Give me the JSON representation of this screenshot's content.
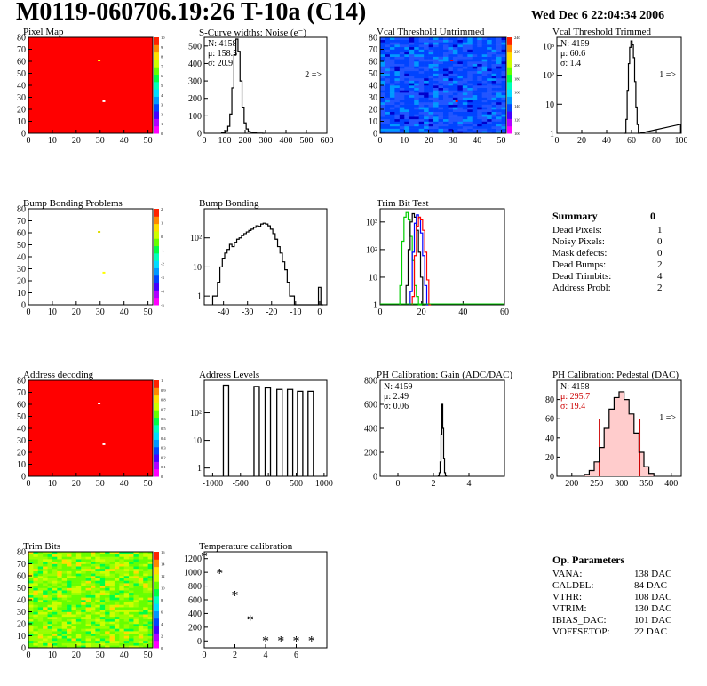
{
  "header": {
    "title": "M0119-060706.19:26 T-10a (C14)",
    "date": "Wed Dec  6 22:04:34 2006"
  },
  "panels": [
    {
      "id": "p1",
      "title": "Pixel Map"
    },
    {
      "id": "p2",
      "title": "S-Curve widths: Noise (e⁻)"
    },
    {
      "id": "p3",
      "title": "Vcal Threshold Untrimmed"
    },
    {
      "id": "p4",
      "title": "Vcal Threshold Trimmed"
    },
    {
      "id": "p5",
      "title": "Bump Bonding Problems"
    },
    {
      "id": "p6",
      "title": "Bump Bonding"
    },
    {
      "id": "p7",
      "title": "Trim Bit Test"
    },
    {
      "id": "p9",
      "title": "Address decoding"
    },
    {
      "id": "p10",
      "title": "Address Levels"
    },
    {
      "id": "p11",
      "title": "PH Calibration: Gain (ADC/DAC)"
    },
    {
      "id": "p12",
      "title": "PH Calibration: Pedestal (DAC)"
    },
    {
      "id": "p13",
      "title": "Trim Bits"
    },
    {
      "id": "p14",
      "title": "Temperature calibration"
    }
  ],
  "stats": {
    "p2": {
      "lines": [
        "N: 4158",
        "μ: 158.5",
        "σ: 20.9"
      ],
      "note": "2 =>"
    },
    "p4": {
      "lines": [
        "N: 4159",
        "μ: 60.6",
        "σ:  1.4"
      ],
      "note": "1 =>"
    },
    "p11": {
      "lines": [
        "N: 4159",
        "μ: 2.49",
        "σ: 0.06"
      ]
    },
    "p12": {
      "lines": [
        "N: 4158",
        "μ: 295.7",
        "σ: 19.4"
      ],
      "note": "1 =>"
    }
  },
  "summary": {
    "heading": "Summary",
    "heading_value": "0",
    "rows": [
      {
        "label": "Dead Pixels:",
        "value": "1"
      },
      {
        "label": "Noisy Pixels:",
        "value": "0"
      },
      {
        "label": "Mask defects:",
        "value": "0"
      },
      {
        "label": "Dead Bumps:",
        "value": "2"
      },
      {
        "label": "Dead Trimbits:",
        "value": "4"
      },
      {
        "label": "Address Probl:",
        "value": "2"
      }
    ]
  },
  "op_params": {
    "heading": "Op. Parameters",
    "rows": [
      {
        "label": "VANA:",
        "value": "138 DAC"
      },
      {
        "label": "CALDEL:",
        "value": "84 DAC"
      },
      {
        "label": "VTHR:",
        "value": "108 DAC"
      },
      {
        "label": "VTRIM:",
        "value": "130 DAC"
      },
      {
        "label": "IBIAS_DAC:",
        "value": "101 DAC"
      },
      {
        "label": "VOFFSETOP:",
        "value": "22 DAC"
      }
    ]
  },
  "chart_data": [
    {
      "id": "p1",
      "type": "heatmap",
      "title": "Pixel Map",
      "xlim": [
        0,
        52
      ],
      "ylim": [
        0,
        80
      ],
      "xticks": [
        0,
        10,
        20,
        30,
        40,
        50
      ],
      "yticks": [
        0,
        10,
        20,
        30,
        40,
        50,
        60,
        70,
        80
      ],
      "zticks": [
        0,
        1,
        2,
        3,
        4,
        5,
        6,
        7,
        8,
        9,
        10
      ],
      "fill": "#ff0000",
      "specials": [
        {
          "x": 29,
          "y": 60,
          "color": "#ffff00"
        },
        {
          "x": 31,
          "y": 26,
          "color": "#ffffff"
        }
      ]
    },
    {
      "id": "p2",
      "type": "histogram",
      "title": "S-Curve widths: Noise (e⁻)",
      "xlim": [
        0,
        600
      ],
      "ylim": [
        0,
        550
      ],
      "xticks": [
        0,
        100,
        200,
        300,
        400,
        500,
        600
      ],
      "yticks": [
        0,
        100,
        200,
        300,
        400,
        500
      ],
      "x": [
        90,
        100,
        110,
        120,
        130,
        140,
        150,
        160,
        170,
        180,
        190,
        200,
        210,
        220,
        230,
        240,
        250,
        260,
        270,
        280,
        290
      ],
      "values": [
        2,
        5,
        15,
        40,
        110,
        260,
        450,
        540,
        470,
        300,
        150,
        60,
        25,
        10,
        6,
        3,
        2,
        1,
        1,
        1,
        0
      ]
    },
    {
      "id": "p3",
      "type": "heatmap",
      "title": "Vcal Threshold Untrimmed",
      "xlim": [
        0,
        52
      ],
      "ylim": [
        0,
        80
      ],
      "xticks": [
        0,
        10,
        20,
        30,
        40,
        50
      ],
      "yticks": [
        0,
        10,
        20,
        30,
        40,
        50,
        60,
        70,
        80
      ],
      "zticks": [
        100,
        120,
        140,
        160,
        180,
        200,
        220,
        240
      ],
      "specials": [
        {
          "x": 29,
          "y": 60,
          "color": "#ff0000"
        },
        {
          "x": 31,
          "y": 26,
          "color": "#ff0000"
        }
      ]
    },
    {
      "id": "p4",
      "type": "histogram",
      "title": "Vcal Threshold Trimmed",
      "log": true,
      "xlim": [
        0,
        100
      ],
      "ylim": [
        1,
        2000
      ],
      "xticks": [
        0,
        20,
        40,
        60,
        80,
        100
      ],
      "ytick_labels": [
        "10³",
        "10²",
        "10",
        "1"
      ],
      "x": [
        55,
        56,
        57,
        58,
        59,
        60,
        61,
        62,
        63,
        64,
        65,
        66,
        99
      ],
      "values": [
        1,
        3,
        30,
        250,
        900,
        1500,
        1100,
        400,
        60,
        8,
        2,
        1,
        2
      ]
    },
    {
      "id": "p5",
      "type": "heatmap",
      "title": "Bump Bonding Problems",
      "xlim": [
        0,
        52
      ],
      "ylim": [
        0,
        80
      ],
      "xticks": [
        0,
        10,
        20,
        30,
        40,
        50
      ],
      "yticks": [
        0,
        10,
        20,
        30,
        40,
        50,
        60,
        70,
        80
      ],
      "zticks": [
        -5,
        -4,
        -3,
        -2,
        -1,
        0,
        1,
        2
      ],
      "fill": "#ffffff",
      "specials": [
        {
          "x": 29,
          "y": 60,
          "color": "#dddd00"
        },
        {
          "x": 31,
          "y": 26,
          "color": "#ffff00"
        }
      ]
    },
    {
      "id": "p6",
      "type": "histogram",
      "title": "Bump Bonding",
      "log": true,
      "xlim": [
        -48,
        3
      ],
      "ylim": [
        0.5,
        1000
      ],
      "xticks": [
        -40,
        -30,
        -20,
        -10,
        0
      ],
      "ytick_labels": [
        "10²",
        "10",
        "1"
      ],
      "x": [
        -44,
        -43,
        -42,
        -41,
        -40,
        -39,
        -38,
        -37,
        -36,
        -35,
        -34,
        -33,
        -32,
        -31,
        -30,
        -29,
        -28,
        -27,
        -26,
        -25,
        -24,
        -23,
        -22,
        -21,
        -20,
        -19,
        -18,
        -17,
        -16,
        -15,
        -14,
        -13,
        -12,
        -11,
        -10,
        -9,
        -8,
        -7,
        -6,
        -5,
        -4,
        -3,
        -2,
        -1,
        0,
        1
      ],
      "values": [
        1,
        1,
        3,
        10,
        20,
        30,
        40,
        60,
        50,
        70,
        90,
        100,
        120,
        140,
        160,
        180,
        200,
        230,
        260,
        250,
        300,
        320,
        300,
        260,
        200,
        140,
        90,
        50,
        30,
        15,
        8,
        3,
        1,
        1,
        0,
        0,
        0,
        0,
        0,
        0,
        0,
        0,
        0,
        0,
        2,
        0
      ]
    },
    {
      "id": "p7",
      "type": "histogram",
      "title": "Trim Bit Test",
      "log": true,
      "xlim": [
        0,
        60
      ],
      "ylim": [
        1,
        3000
      ],
      "xticks": [
        0,
        20,
        40,
        60
      ],
      "ytick_labels": [
        "10³",
        "10²",
        "10",
        "1"
      ],
      "series": [
        {
          "color": "#00cc00",
          "x": [
            10,
            11,
            12,
            13,
            14,
            15,
            16,
            17,
            18,
            19,
            20
          ],
          "values": [
            5,
            200,
            1500,
            2200,
            1200,
            300,
            40,
            5,
            2,
            1,
            1
          ]
        },
        {
          "color": "#000000",
          "x": [
            13,
            14,
            15,
            16,
            17,
            18,
            19,
            20,
            21
          ],
          "values": [
            5,
            100,
            1000,
            2000,
            1500,
            500,
            80,
            10,
            1
          ]
        },
        {
          "color": "#0000ff",
          "x": [
            15,
            16,
            17,
            18,
            19,
            20,
            21,
            22,
            23
          ],
          "values": [
            3,
            80,
            900,
            1800,
            1300,
            400,
            60,
            5,
            1
          ]
        },
        {
          "color": "#ff0000",
          "x": [
            16,
            17,
            18,
            19,
            20,
            21,
            22,
            23,
            24
          ],
          "values": [
            2,
            60,
            700,
            1500,
            1200,
            500,
            80,
            8,
            1
          ]
        }
      ]
    },
    {
      "id": "p9",
      "type": "heatmap",
      "title": "Address decoding",
      "xlim": [
        0,
        52
      ],
      "ylim": [
        0,
        80
      ],
      "xticks": [
        0,
        10,
        20,
        30,
        40,
        50
      ],
      "yticks": [
        0,
        10,
        20,
        30,
        40,
        50,
        60,
        70,
        80
      ],
      "zticks": [
        0,
        0.1,
        0.2,
        0.3,
        0.4,
        0.5,
        0.6,
        0.7,
        0.8,
        0.9,
        1
      ],
      "fill": "#ff0000",
      "specials": [
        {
          "x": 29,
          "y": 60,
          "color": "#ffffff"
        },
        {
          "x": 31,
          "y": 26,
          "color": "#ffffff"
        }
      ]
    },
    {
      "id": "p10",
      "type": "histogram",
      "title": "Address Levels",
      "log": true,
      "xlim": [
        -1150,
        1050
      ],
      "ylim": [
        0.5,
        1500
      ],
      "xticks": [
        -1000,
        -500,
        0,
        500,
        1000
      ],
      "ytick_labels": [
        "10²",
        "10",
        "1"
      ],
      "peaks": [
        {
          "x": -760,
          "h": 1000
        },
        {
          "x": -210,
          "h": 900
        },
        {
          "x": -10,
          "h": 800
        },
        {
          "x": 200,
          "h": 700
        },
        {
          "x": 390,
          "h": 700
        },
        {
          "x": 570,
          "h": 600
        },
        {
          "x": 760,
          "h": 600
        }
      ]
    },
    {
      "id": "p11",
      "type": "histogram",
      "title": "PH Calibration: Gain (ADC/DAC)",
      "xlim": [
        -1,
        6
      ],
      "ylim": [
        0,
        800
      ],
      "xticks": [
        0,
        2,
        4
      ],
      "yticks": [
        0,
        200,
        400,
        600,
        800
      ],
      "x": [
        2.3,
        2.35,
        2.4,
        2.45,
        2.5,
        2.55,
        2.6,
        2.65,
        2.7
      ],
      "values": [
        5,
        30,
        120,
        350,
        600,
        400,
        150,
        30,
        5
      ]
    },
    {
      "id": "p12",
      "type": "histogram",
      "title": "PH Calibration: Pedestal (DAC)",
      "xlim": [
        170,
        420
      ],
      "ylim": [
        0,
        100
      ],
      "xticks": [
        200,
        250,
        300,
        350,
        400
      ],
      "yticks": [
        0,
        20,
        40,
        60,
        80
      ],
      "x": [
        230,
        240,
        250,
        260,
        270,
        280,
        290,
        300,
        310,
        320,
        330,
        340,
        350,
        360
      ],
      "values": [
        2,
        6,
        15,
        30,
        50,
        70,
        82,
        88,
        80,
        65,
        45,
        25,
        10,
        3
      ],
      "cut_lines": [
        255,
        337
      ]
    },
    {
      "id": "p13",
      "type": "heatmap",
      "title": "Trim Bits",
      "xlim": [
        0,
        52
      ],
      "ylim": [
        0,
        80
      ],
      "xticks": [
        0,
        10,
        20,
        30,
        40,
        50
      ],
      "yticks": [
        0,
        10,
        20,
        30,
        40,
        50,
        60,
        70,
        80
      ],
      "zticks": [
        0,
        2,
        4,
        6,
        8,
        10,
        12,
        14,
        16
      ]
    },
    {
      "id": "p14",
      "type": "scatter",
      "title": "Temperature calibration",
      "xlim": [
        0,
        8
      ],
      "ylim": [
        -100,
        1300
      ],
      "xticks": [
        0,
        2,
        4,
        6
      ],
      "yticks": [
        0,
        200,
        400,
        600,
        800,
        1000,
        1200
      ],
      "x": [
        0,
        1,
        2,
        3,
        4,
        5,
        6,
        7
      ],
      "y": [
        1230,
        980,
        660,
        300,
        0,
        0,
        0,
        0
      ]
    }
  ]
}
